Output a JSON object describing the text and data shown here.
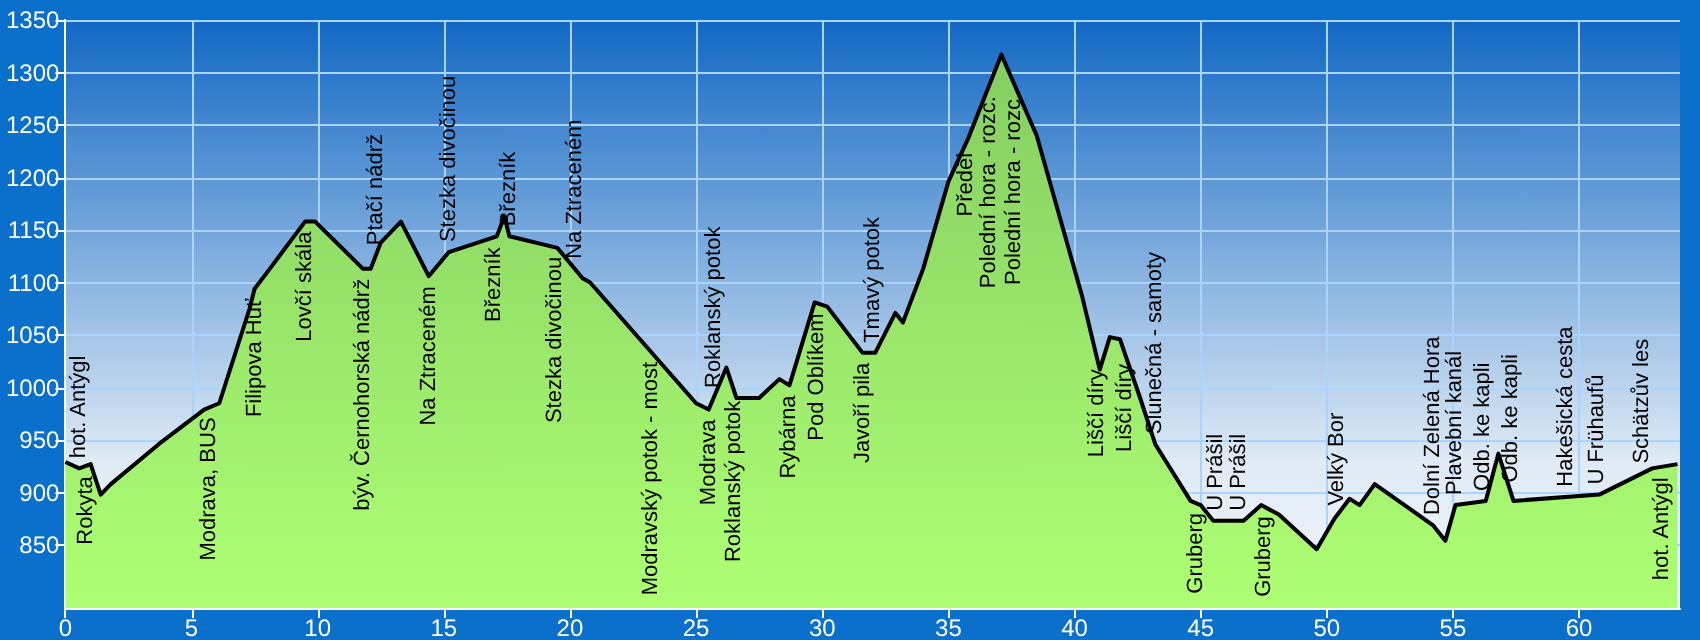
{
  "chart_data": {
    "type": "area",
    "x": [
      0,
      0.55,
      1.0,
      1.4,
      1.8,
      3.7,
      5.5,
      6.1,
      7.3,
      7.5,
      8.1,
      9.5,
      9.9,
      11.8,
      12.1,
      12.5,
      13.3,
      14.4,
      15.2,
      17.1,
      17.4,
      17.6,
      19.5,
      20.5,
      20.8,
      25.0,
      25.5,
      26.2,
      26.6,
      27.5,
      28.3,
      28.7,
      29.7,
      30.2,
      31.6,
      32.1,
      32.9,
      33.2,
      34.0,
      35.0,
      35.8,
      37.1,
      38.5,
      40.3,
      41.0,
      41.4,
      41.8,
      42.6,
      43.2,
      44.6,
      45.0,
      45.5,
      46.7,
      47.4,
      48.1,
      49.6,
      50.3,
      50.9,
      51.3,
      51.9,
      54.2,
      54.7,
      55.1,
      56.3,
      56.8,
      57.4,
      60.8,
      62.9,
      63.9
    ],
    "series": [
      {
        "color": "#78c850",
        "values": [
          929,
          923,
          927,
          898,
          908,
          946,
          979,
          985,
          1075,
          1094,
          1113,
          1158,
          1158,
          1113,
          1113,
          1138,
          1158,
          1106,
          1129,
          1144,
          1163,
          1144,
          1133,
          1104,
          1100,
          985,
          979,
          1019,
          990,
          990,
          1008,
          1002,
          1081,
          1077,
          1033,
          1033,
          1071,
          1062,
          1113,
          1196,
          1238,
          1317,
          1240,
          1087,
          1017,
          1048,
          1046,
          990,
          946,
          892,
          888,
          873,
          873,
          888,
          879,
          846,
          875,
          894,
          888,
          908,
          869,
          854,
          888,
          892,
          937,
          892,
          898,
          923,
          927
        ]
      }
    ],
    "xlim": [
      0,
      64
    ],
    "xticks": [
      0,
      5,
      10,
      15,
      20,
      25,
      30,
      35,
      40,
      45,
      50,
      55,
      60
    ],
    "ylim": [
      790,
      1350
    ],
    "yticks": [
      850,
      900,
      950,
      1000,
      1050,
      1100,
      1150,
      1200,
      1250,
      1300,
      1350
    ],
    "grid": true,
    "annotations": [
      {
        "text": "Rokyta",
        "x": 0.8,
        "y": 925
      },
      {
        "text": "hot. Antýgl",
        "x": 0.55,
        "y": 923
      },
      {
        "text": "Modrava, BUS",
        "x": 5.7,
        "y": 981
      },
      {
        "text": "Filipova Huť",
        "x": 7.5,
        "y": 1094
      },
      {
        "text": "Lovčí skála",
        "x": 9.5,
        "y": 1158
      },
      {
        "text": "býv. Černohorská nádrž",
        "x": 11.8,
        "y": 1113
      },
      {
        "text": "Ptačí nádrž",
        "x": 12.3,
        "y": 1126
      },
      {
        "text": "Na Ztraceném",
        "x": 14.4,
        "y": 1106
      },
      {
        "text": "Stezka divočinou",
        "x": 15.2,
        "y": 1129
      },
      {
        "text": "Březník",
        "x": 17.0,
        "y": 1143
      },
      {
        "text": "Březník",
        "x": 17.6,
        "y": 1144
      },
      {
        "text": "Stezka divočinou",
        "x": 19.4,
        "y": 1134
      },
      {
        "text": "Na Ztraceném",
        "x": 20.2,
        "y": 1113
      },
      {
        "text": "Modravský potok - most",
        "x": 23.2,
        "y": 1034
      },
      {
        "text": "Modrava",
        "x": 25.5,
        "y": 979
      },
      {
        "text": "Roklanský potok",
        "x": 25.7,
        "y": 990
      },
      {
        "text": "Roklanský potok",
        "x": 26.5,
        "y": 997
      },
      {
        "text": "Rybárna",
        "x": 28.7,
        "y": 1002
      },
      {
        "text": "Pod Oblíkem",
        "x": 29.8,
        "y": 1080
      },
      {
        "text": "Javoří pila",
        "x": 31.6,
        "y": 1033
      },
      {
        "text": "Tmavý potok",
        "x": 32.0,
        "y": 1033
      },
      {
        "text": "Předěl",
        "x": 35.7,
        "y": 1233
      },
      {
        "text": "Polední hora - rozc.",
        "x": 36.6,
        "y": 1287
      },
      {
        "text": "Polední hora - rozc.",
        "x": 37.6,
        "y": 1290
      },
      {
        "text": "Liščí díry",
        "x": 40.9,
        "y": 1027
      },
      {
        "text": "Liščí díry",
        "x": 42.0,
        "y": 1032
      },
      {
        "text": "Slunečná - samoty",
        "x": 43.2,
        "y": 946
      },
      {
        "text": "Gruberg",
        "x": 44.8,
        "y": 890
      },
      {
        "text": "U Prášil",
        "x": 45.6,
        "y": 873
      },
      {
        "text": "U Prášil",
        "x": 46.5,
        "y": 873
      },
      {
        "text": "Gruberg",
        "x": 47.5,
        "y": 887
      },
      {
        "text": "Velký Bor",
        "x": 50.4,
        "y": 878
      },
      {
        "text": "Dolní Zelená Hora",
        "x": 54.2,
        "y": 869
      },
      {
        "text": "Plavební kanál",
        "x": 55.1,
        "y": 888
      },
      {
        "text": "Odb. ke kapli",
        "x": 56.2,
        "y": 892
      },
      {
        "text": "Odb. ke kapli",
        "x": 57.3,
        "y": 900
      },
      {
        "text": "Hakešická cesta",
        "x": 59.5,
        "y": 896
      },
      {
        "text": "U Frühaufů",
        "x": 60.7,
        "y": 898
      },
      {
        "text": "Schätzův les",
        "x": 62.5,
        "y": 918
      },
      {
        "text": "hot. Antýgl",
        "x": 63.3,
        "y": 925
      }
    ]
  }
}
